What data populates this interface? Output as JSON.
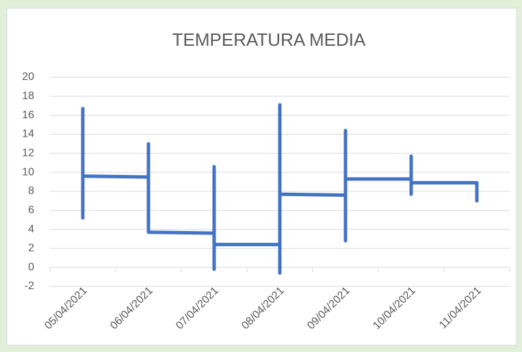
{
  "chart_data": {
    "type": "line",
    "title": "TEMPERATURA MEDIA",
    "categories": [
      "05/04/2021",
      "06/04/2021",
      "07/04/2021",
      "08/04/2021",
      "09/04/2021",
      "10/04/2021",
      "11/04/2021"
    ],
    "x": [
      "05/04/2021",
      "05/04/2021",
      "05/04/2021",
      "05/04/2021",
      "06/04/2021",
      "06/04/2021",
      "06/04/2021",
      "06/04/2021",
      "07/04/2021",
      "07/04/2021",
      "07/04/2021",
      "07/04/2021",
      "08/04/2021",
      "08/04/2021",
      "08/04/2021",
      "08/04/2021",
      "09/04/2021",
      "09/04/2021",
      "09/04/2021",
      "09/04/2021",
      "10/04/2021",
      "10/04/2021",
      "10/04/2021",
      "10/04/2021",
      "11/04/2021",
      "11/04/2021"
    ],
    "series": [
      {
        "color": "#4472c4",
        "values": [
          10,
          5.2,
          16.7,
          9.6,
          9.5,
          4.0,
          13.0,
          3.7,
          3.6,
          -0.2,
          10.6,
          2.4,
          2.4,
          -0.6,
          17.1,
          7.7,
          7.6,
          2.8,
          14.4,
          9.3,
          9.3,
          7.7,
          11.7,
          8.9,
          8.9,
          7.0
        ]
      }
    ],
    "ylim": [
      -2,
      20
    ],
    "yticks": [
      -2,
      0,
      2,
      4,
      6,
      8,
      10,
      12,
      14,
      16,
      18,
      20
    ],
    "grid": true
  }
}
